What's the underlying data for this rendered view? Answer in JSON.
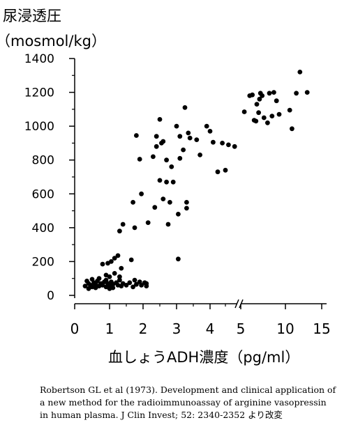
{
  "chart_data": {
    "type": "scatter",
    "ylabel_line1": "尿浸透圧",
    "ylabel_line2": "（mosmol/kg）",
    "xlabel": "血しょうADH濃度（pg/ml）",
    "y_ticks": [
      "0",
      "200",
      "400",
      "600",
      "800",
      "1000",
      "1200",
      "1400"
    ],
    "x_ticks": [
      "0",
      "1",
      "2",
      "3",
      "4",
      "5",
      "10",
      "15"
    ],
    "ylim": [
      0,
      1400
    ],
    "xlim": [
      0,
      15
    ],
    "x_scale": "piecewise: linear 0–5, compressed 5–15 with axis break at 5",
    "grid": false,
    "marker_color": "#000000",
    "points": [
      [
        0.3,
        55
      ],
      [
        0.35,
        85
      ],
      [
        0.4,
        40
      ],
      [
        0.4,
        70
      ],
      [
        0.45,
        60
      ],
      [
        0.5,
        95
      ],
      [
        0.5,
        50
      ],
      [
        0.55,
        75
      ],
      [
        0.6,
        65
      ],
      [
        0.6,
        45
      ],
      [
        0.65,
        85
      ],
      [
        0.7,
        55
      ],
      [
        0.7,
        100
      ],
      [
        0.75,
        70
      ],
      [
        0.8,
        60
      ],
      [
        0.85,
        80
      ],
      [
        0.9,
        50
      ],
      [
        0.9,
        90
      ],
      [
        0.95,
        70
      ],
      [
        1.0,
        60
      ],
      [
        1.0,
        40
      ],
      [
        1.05,
        80
      ],
      [
        1.1,
        65
      ],
      [
        1.1,
        45
      ],
      [
        1.2,
        75
      ],
      [
        1.25,
        60
      ],
      [
        1.3,
        90
      ],
      [
        1.35,
        55
      ],
      [
        1.4,
        70
      ],
      [
        1.5,
        60
      ],
      [
        1.6,
        75
      ],
      [
        1.7,
        50
      ],
      [
        1.75,
        90
      ],
      [
        1.8,
        65
      ],
      [
        1.9,
        80
      ],
      [
        1.95,
        60
      ],
      [
        2.05,
        75
      ],
      [
        2.1,
        70
      ],
      [
        2.1,
        55
      ],
      [
        0.8,
        185
      ],
      [
        0.95,
        190
      ],
      [
        1.05,
        200
      ],
      [
        1.15,
        220
      ],
      [
        1.25,
        235
      ],
      [
        1.35,
        160
      ],
      [
        1.3,
        110
      ],
      [
        1.15,
        130
      ],
      [
        1.0,
        110
      ],
      [
        0.9,
        120
      ],
      [
        1.65,
        210
      ],
      [
        3.05,
        215
      ],
      [
        1.3,
        380
      ],
      [
        1.4,
        420
      ],
      [
        1.7,
        550
      ],
      [
        1.75,
        400
      ],
      [
        1.95,
        600
      ],
      [
        1.8,
        945
      ],
      [
        1.9,
        805
      ],
      [
        2.15,
        430
      ],
      [
        2.3,
        820
      ],
      [
        2.35,
        520
      ],
      [
        2.4,
        880
      ],
      [
        2.5,
        1040
      ],
      [
        2.55,
        900
      ],
      [
        2.5,
        680
      ],
      [
        2.6,
        570
      ],
      [
        2.7,
        670
      ],
      [
        2.7,
        800
      ],
      [
        2.75,
        420
      ],
      [
        2.8,
        550
      ],
      [
        2.85,
        760
      ],
      [
        2.9,
        670
      ],
      [
        3.0,
        1000
      ],
      [
        3.05,
        480
      ],
      [
        3.1,
        810
      ],
      [
        3.2,
        860
      ],
      [
        3.25,
        1110
      ],
      [
        3.3,
        550
      ],
      [
        3.3,
        515
      ],
      [
        3.35,
        960
      ],
      [
        3.4,
        930
      ],
      [
        3.6,
        920
      ],
      [
        3.7,
        830
      ],
      [
        2.4,
        940
      ],
      [
        2.6,
        910
      ],
      [
        3.1,
        940
      ],
      [
        3.9,
        1000
      ],
      [
        4.0,
        970
      ],
      [
        4.1,
        905
      ],
      [
        4.25,
        730
      ],
      [
        4.4,
        900
      ],
      [
        4.5,
        740
      ],
      [
        4.6,
        890
      ],
      [
        4.8,
        880
      ],
      [
        5.4,
        1085
      ],
      [
        6.0,
        1180
      ],
      [
        6.3,
        1185
      ],
      [
        6.5,
        1035
      ],
      [
        6.7,
        1030
      ],
      [
        7.0,
        1080
      ],
      [
        7.2,
        1195
      ],
      [
        7.4,
        1180
      ],
      [
        7.6,
        1050
      ],
      [
        8.2,
        1195
      ],
      [
        8.7,
        1200
      ],
      [
        9.0,
        1150
      ],
      [
        9.3,
        1070
      ],
      [
        8.0,
        1020
      ],
      [
        10.6,
        1095
      ],
      [
        10.9,
        985
      ],
      [
        11.5,
        1195
      ],
      [
        12.0,
        1320
      ],
      [
        13.0,
        1200
      ],
      [
        6.8,
        1130
      ],
      [
        7.1,
        1160
      ],
      [
        8.5,
        1060
      ]
    ]
  },
  "caption": {
    "line1": "Robertson GL et al (1973).  Development and clinical application of",
    "line2": "a new method for the radioimmunoassay of arginine vasopressin",
    "line3": "in human plasma. J Clin Invest; 52: 2340-2352 より改変"
  }
}
